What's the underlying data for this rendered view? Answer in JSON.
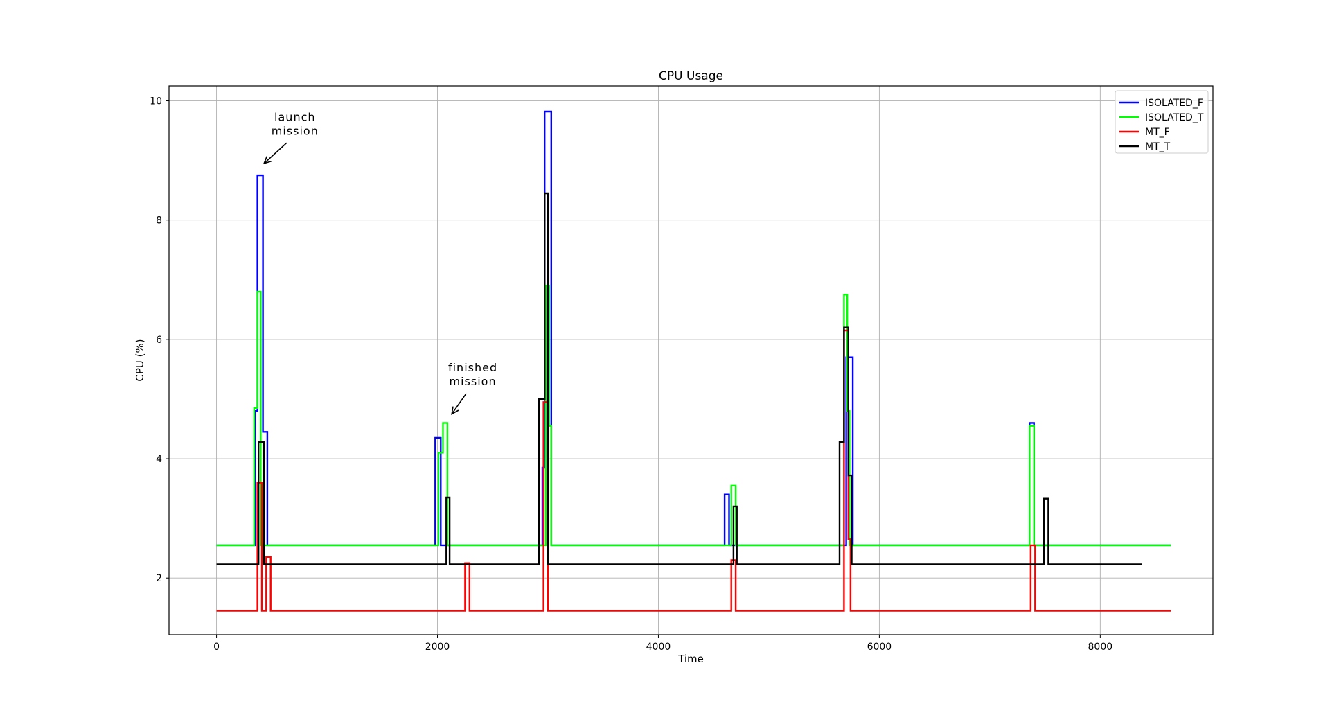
{
  "chart_data": {
    "type": "line",
    "title": "CPU Usage",
    "xlabel": "Time",
    "ylabel": "CPU (%)",
    "xlim": [
      -430,
      9020
    ],
    "ylim": [
      1.05,
      10.25
    ],
    "xticks": [
      0,
      2000,
      4000,
      6000,
      8000
    ],
    "yticks": [
      2,
      4,
      6,
      8,
      10
    ],
    "grid": true,
    "legend_position": "top-right",
    "series": [
      {
        "name": "ISOLATED_F",
        "color": "#0000ff",
        "x": [
          0,
          350,
          370,
          420,
          440,
          460,
          1980,
          2030,
          2050,
          2950,
          2970,
          3030,
          4600,
          4640,
          5650,
          5700,
          5720,
          5760,
          7360,
          7400,
          8640
        ],
        "y": [
          2.55,
          4.8,
          8.75,
          4.45,
          4.45,
          2.55,
          4.35,
          2.55,
          2.55,
          3.85,
          9.82,
          2.55,
          3.4,
          2.55,
          2.55,
          5.7,
          5.7,
          2.55,
          4.6,
          2.55,
          2.55
        ]
      },
      {
        "name": "ISOLATED_T",
        "color": "#00ff00",
        "x": [
          0,
          340,
          370,
          400,
          420,
          2010,
          2030,
          2050,
          2070,
          2090,
          2960,
          2980,
          3010,
          3030,
          4620,
          4640,
          4660,
          4700,
          5680,
          5710,
          5730,
          5760,
          7360,
          7400,
          8640
        ],
        "y": [
          2.55,
          4.85,
          6.8,
          2.55,
          2.55,
          4.1,
          4.1,
          4.6,
          4.6,
          2.55,
          2.55,
          6.9,
          4.55,
          2.55,
          2.55,
          2.55,
          3.55,
          2.55,
          6.75,
          4.8,
          2.55,
          2.55,
          4.55,
          2.55,
          2.55
        ]
      },
      {
        "name": "MT_F",
        "color": "#ff0000",
        "x": [
          0,
          370,
          410,
          420,
          450,
          490,
          2250,
          2290,
          2930,
          2960,
          3000,
          4660,
          4700,
          5650,
          5680,
          5720,
          5740,
          7370,
          7410,
          8640
        ],
        "y": [
          1.45,
          3.6,
          1.45,
          1.45,
          2.35,
          1.45,
          2.25,
          1.45,
          1.45,
          4.95,
          1.45,
          2.3,
          1.45,
          1.45,
          6.15,
          2.65,
          1.45,
          2.55,
          1.45,
          1.45
        ]
      },
      {
        "name": "MT_T",
        "color": "#000000",
        "x": [
          0,
          380,
          400,
          430,
          2080,
          2110,
          2920,
          2970,
          3000,
          4680,
          4710,
          5640,
          5680,
          5720,
          5750,
          7490,
          7530,
          8380
        ],
        "y": [
          2.23,
          4.28,
          4.28,
          2.23,
          3.35,
          2.23,
          5.0,
          8.45,
          2.23,
          3.2,
          2.23,
          4.28,
          6.2,
          3.72,
          2.23,
          3.33,
          2.23,
          2.23
        ]
      }
    ],
    "annotations": [
      {
        "lines": [
          "launch",
          "mission"
        ],
        "text_x": 710,
        "text_y": 9.55,
        "arrow_x": 430,
        "arrow_y": 8.95
      },
      {
        "lines": [
          "finished",
          "mission"
        ],
        "text_x": 2320,
        "text_y": 5.35,
        "arrow_x": 2130,
        "arrow_y": 4.75
      }
    ]
  }
}
